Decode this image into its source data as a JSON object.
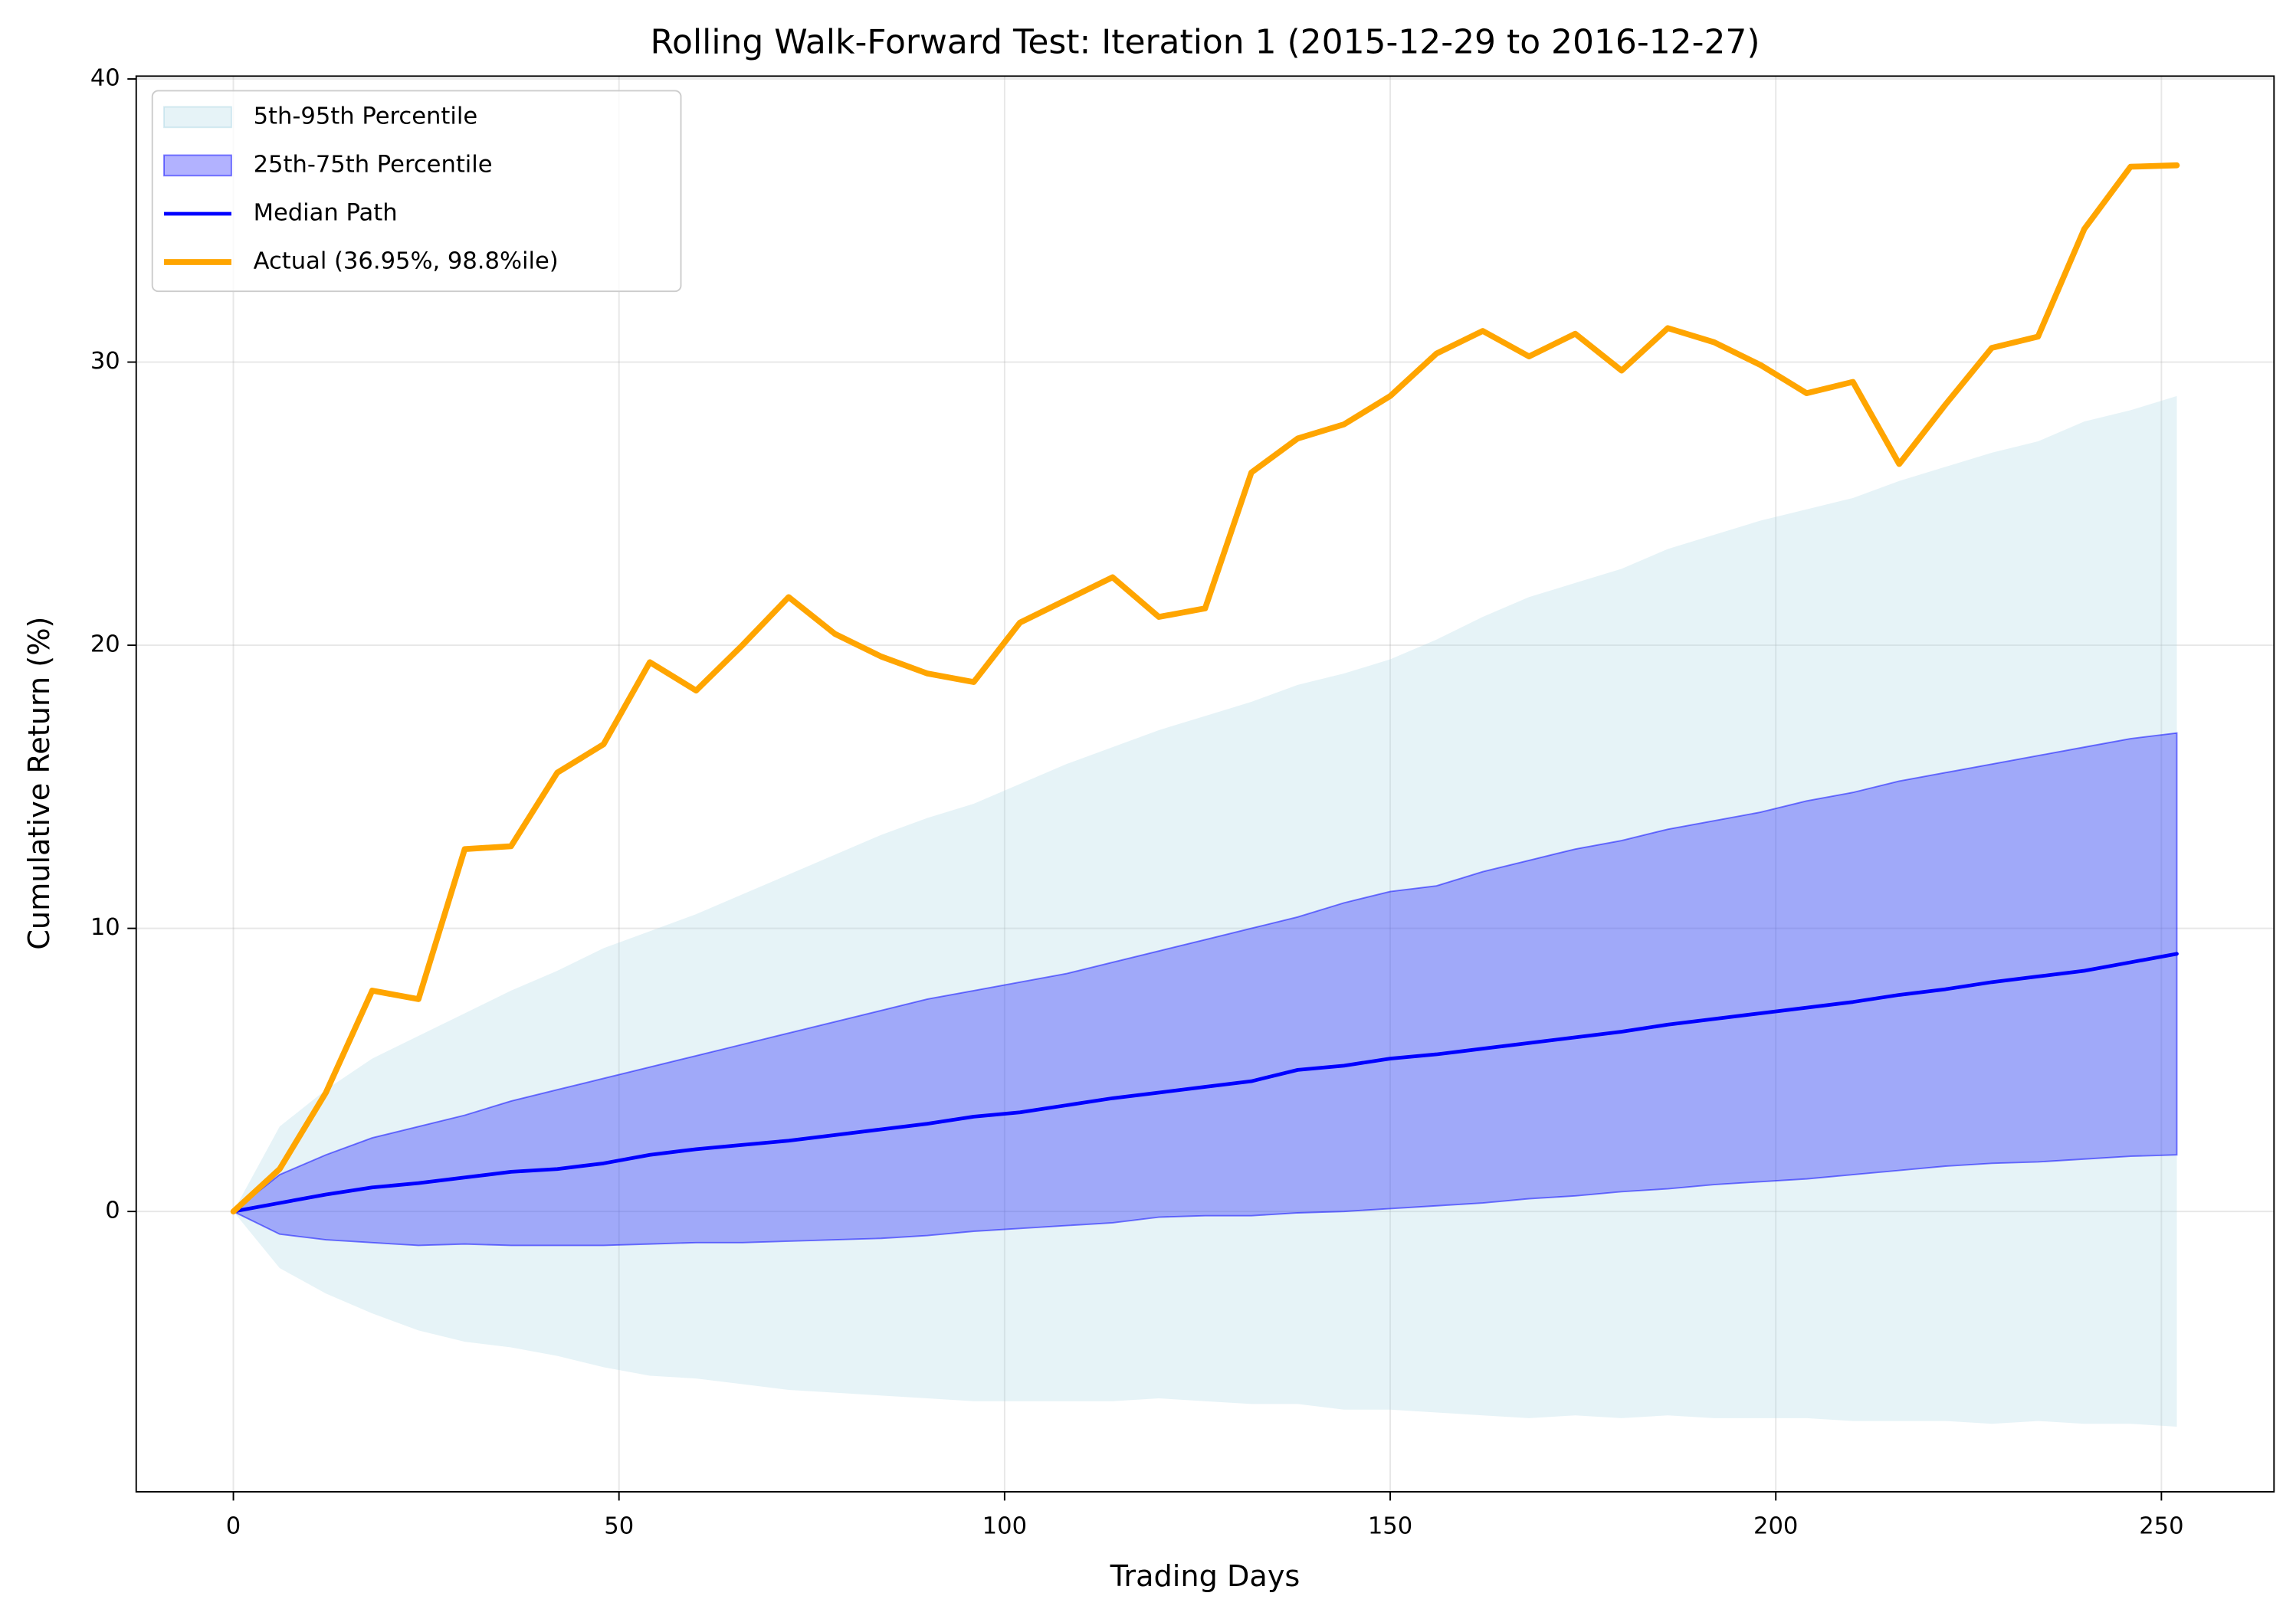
{
  "chart_data": {
    "type": "line",
    "title": "Rolling Walk-Forward Test: Iteration 1 (2015-12-29 to 2016-12-27)",
    "x_label": "Trading Days",
    "y_label": "Cumulative Return (%)",
    "x": [
      0,
      6,
      12,
      18,
      24,
      30,
      36,
      42,
      48,
      54,
      60,
      66,
      72,
      78,
      84,
      90,
      96,
      102,
      108,
      114,
      120,
      126,
      132,
      138,
      144,
      150,
      156,
      162,
      168,
      174,
      180,
      186,
      192,
      198,
      204,
      210,
      216,
      222,
      228,
      234,
      240,
      246,
      252
    ],
    "xlim": [
      -12.6,
      264.6
    ],
    "xticks": [
      0,
      50,
      100,
      150,
      200,
      250
    ],
    "ylim": [
      -9.9,
      40.1
    ],
    "yticks": [
      0,
      10,
      20,
      30,
      40
    ],
    "grid": true,
    "legend": "upper left",
    "series": [
      {
        "name": "5th-95th Percentile",
        "color": "#add8e6",
        "alpha": 0.3,
        "lower": [
          0,
          -2.0,
          -2.9,
          -3.6,
          -4.2,
          -4.6,
          -4.8,
          -5.1,
          -5.5,
          -5.8,
          -5.9,
          -6.1,
          -6.3,
          -6.4,
          -6.5,
          -6.6,
          -6.7,
          -6.7,
          -6.7,
          -6.7,
          -6.6,
          -6.7,
          -6.8,
          -6.8,
          -7.0,
          -7.0,
          -7.1,
          -7.2,
          -7.3,
          -7.2,
          -7.3,
          -7.2,
          -7.3,
          -7.3,
          -7.3,
          -7.4,
          -7.4,
          -7.4,
          -7.5,
          -7.4,
          -7.5,
          -7.5,
          -7.6
        ],
        "upper": [
          0,
          3.0,
          4.3,
          5.4,
          6.2,
          7.0,
          7.8,
          8.5,
          9.3,
          9.9,
          10.5,
          11.2,
          11.9,
          12.6,
          13.3,
          13.9,
          14.4,
          15.1,
          15.8,
          16.4,
          17.0,
          17.5,
          18.0,
          18.6,
          19.0,
          19.5,
          20.2,
          21.0,
          21.7,
          22.2,
          22.7,
          23.4,
          23.9,
          24.4,
          24.8,
          25.2,
          25.8,
          26.3,
          26.8,
          27.2,
          27.9,
          28.3,
          28.8
        ]
      },
      {
        "name": "25th-75th Percentile",
        "color": "#0000ff",
        "alpha": 0.3,
        "lower": [
          0,
          -0.8,
          -1.0,
          -1.1,
          -1.2,
          -1.15,
          -1.2,
          -1.2,
          -1.2,
          -1.15,
          -1.1,
          -1.1,
          -1.05,
          -1.0,
          -0.95,
          -0.85,
          -0.7,
          -0.6,
          -0.5,
          -0.4,
          -0.2,
          -0.15,
          -0.15,
          -0.05,
          0,
          0.1,
          0.2,
          0.3,
          0.45,
          0.55,
          0.7,
          0.8,
          0.95,
          1.05,
          1.15,
          1.3,
          1.45,
          1.6,
          1.7,
          1.75,
          1.85,
          1.95,
          2.0
        ],
        "upper": [
          0,
          1.3,
          2.0,
          2.6,
          3.0,
          3.4,
          3.9,
          4.3,
          4.7,
          5.1,
          5.5,
          5.9,
          6.3,
          6.7,
          7.1,
          7.5,
          7.8,
          8.1,
          8.4,
          8.8,
          9.2,
          9.6,
          10.0,
          10.4,
          10.9,
          11.3,
          11.5,
          12.0,
          12.4,
          12.8,
          13.1,
          13.5,
          13.8,
          14.1,
          14.5,
          14.8,
          15.2,
          15.5,
          15.8,
          16.1,
          16.4,
          16.7,
          16.9
        ]
      },
      {
        "name": "Median Path",
        "color": "#0000ff",
        "width": 2.5,
        "values": [
          0,
          0.3,
          0.6,
          0.85,
          1.0,
          1.2,
          1.4,
          1.5,
          1.7,
          2.0,
          2.2,
          2.35,
          2.5,
          2.7,
          2.9,
          3.1,
          3.35,
          3.5,
          3.75,
          4.0,
          4.2,
          4.4,
          4.6,
          5.0,
          5.15,
          5.4,
          5.55,
          5.75,
          5.95,
          6.15,
          6.35,
          6.6,
          6.8,
          7.0,
          7.2,
          7.4,
          7.65,
          7.85,
          8.1,
          8.3,
          8.5,
          8.8,
          9.1
        ]
      },
      {
        "name": "Actual (36.95%, 98.8%ile)",
        "color": "#ffa500",
        "width": 4,
        "values": [
          0,
          1.5,
          4.2,
          7.8,
          7.5,
          12.8,
          12.9,
          15.5,
          16.5,
          19.4,
          18.4,
          20.0,
          21.7,
          20.4,
          19.6,
          19.0,
          18.7,
          20.8,
          21.6,
          22.4,
          21.0,
          21.3,
          26.1,
          27.3,
          27.8,
          28.8,
          30.3,
          31.1,
          30.2,
          31.0,
          29.7,
          31.2,
          30.7,
          29.9,
          28.9,
          29.3,
          26.4,
          28.5,
          30.5,
          30.9,
          34.7,
          36.9,
          36.95
        ]
      }
    ]
  }
}
